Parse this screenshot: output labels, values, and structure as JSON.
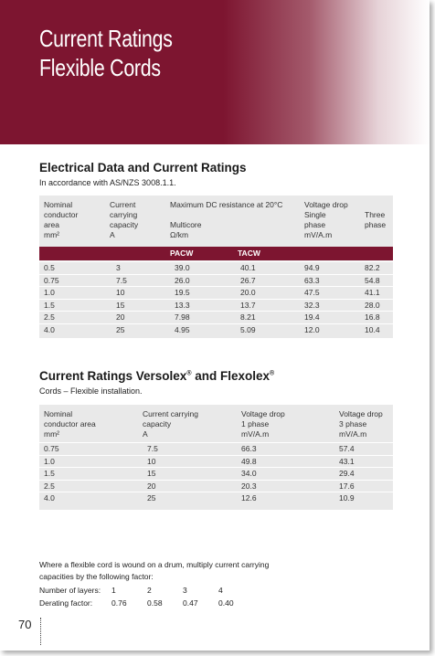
{
  "banner": {
    "title_line1": "Current Ratings",
    "title_line2": "Flexible Cords"
  },
  "section1": {
    "title": "Electrical Data and Current Ratings",
    "subtitle": "In accordance with AS/NZS 3008.1.1.",
    "headers": {
      "area": [
        "Nominal",
        "conductor",
        "area",
        "mm²"
      ],
      "capacity": [
        "Current",
        "carrying",
        "capacity",
        "A"
      ],
      "resistance": "Maximum DC resistance at 20°C",
      "multicore": [
        "Multicore",
        "Ω/km"
      ],
      "vdrop": "Voltage drop",
      "single": [
        "Single",
        "phase",
        "mV/A.m"
      ],
      "three": [
        "Three",
        "phase"
      ],
      "pacw": "PACW",
      "tacw": "TACW"
    },
    "rows": [
      [
        "0.5",
        "3",
        "39.0",
        "40.1",
        "94.9",
        "82.2"
      ],
      [
        "0.75",
        "7.5",
        "26.0",
        "26.7",
        "63.3",
        "54.8"
      ],
      [
        "1.0",
        "10",
        "19.5",
        "20.0",
        "47.5",
        "41.1"
      ],
      [
        "1.5",
        "15",
        "13.3",
        "13.7",
        "32.3",
        "28.0"
      ],
      [
        "2.5",
        "20",
        "7.98",
        "8.21",
        "19.4",
        "16.8"
      ],
      [
        "4.0",
        "25",
        "4.95",
        "5.09",
        "12.0",
        "10.4"
      ]
    ]
  },
  "section2": {
    "title_main": "Current Ratings Versolex",
    "title_reg": "®",
    "title_and": " and Flexolex",
    "subtitle": "Cords – Flexible installation.",
    "headers": {
      "area": [
        "Nominal",
        "conductor area",
        "mm²"
      ],
      "capacity": [
        "Current carrying",
        "capacity",
        "A"
      ],
      "vdrop1": [
        "Voltage drop",
        "1 phase",
        "mV/A.m"
      ],
      "vdrop3": [
        "Voltage drop",
        "3 phase",
        "mV/A.m"
      ]
    },
    "rows": [
      [
        "0.75",
        "7.5",
        "66.3",
        "57.4"
      ],
      [
        "1.0",
        "10",
        "49.8",
        "43.1"
      ],
      [
        "1.5",
        "15",
        "34.0",
        "29.4"
      ],
      [
        "2.5",
        "20",
        "20.3",
        "17.6"
      ],
      [
        "4.0",
        "25",
        "12.6",
        "10.9"
      ]
    ]
  },
  "note": {
    "line1": "Where a flexible cord is wound on a drum, multiply current carrying",
    "line2": "capacities by the following factor:",
    "layers_label": "Number of layers:",
    "layers": [
      "1",
      "2",
      "3",
      "4"
    ],
    "derating_label": "Derating factor:",
    "derating": [
      "0.76",
      "0.58",
      "0.47",
      "0.40"
    ]
  },
  "page_number": "70"
}
